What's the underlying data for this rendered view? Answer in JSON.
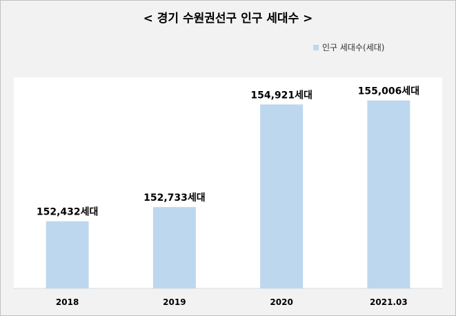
{
  "chart_data": {
    "type": "bar",
    "title": "< 경기 수원권선구 인구 세대수 >",
    "categories": [
      "2018",
      "2019",
      "2020",
      "2021.03"
    ],
    "series": [
      {
        "name": "인구 세대수(세대)",
        "values": [
          152432,
          152733,
          154921,
          155006
        ],
        "data_labels": [
          "152,432세대",
          "152,733세대",
          "154,921세대",
          "155,006세대"
        ]
      }
    ],
    "ylim": [
      151000,
      155500
    ],
    "grid": false,
    "legend_position": "top-right",
    "colors": {
      "bar": "#bdd7ee",
      "plot_background": "#ffffff",
      "background": "#f2f2f2"
    }
  }
}
